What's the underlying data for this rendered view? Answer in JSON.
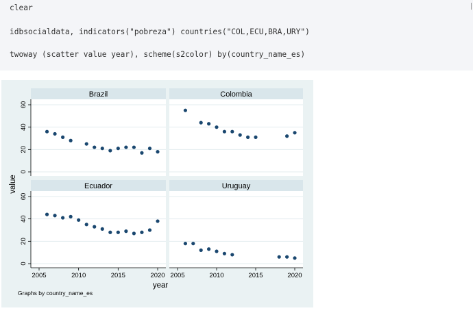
{
  "code": {
    "lines": [
      "clear",
      "idbsocialdata, indicators(\"pobreza\") countries(\"COL,ECU,BRA,URY\")",
      "twoway (scatter value year), scheme(s2color) by(country_name_es)"
    ]
  },
  "figure": {
    "note": "Graphs by country_name_es",
    "colors": {
      "marker": "#1a476f",
      "panel_header": "#d9e6eb",
      "background": "#eaf2f3"
    }
  },
  "chart_data": {
    "type": "scatter",
    "xlabel": "year",
    "ylabel": "value",
    "xlim": [
      2005,
      2020
    ],
    "ylim": [
      0,
      60
    ],
    "xticks": [
      "2005",
      "2010",
      "2015",
      "2020"
    ],
    "yticks": [
      "0",
      "20",
      "40",
      "60"
    ],
    "grid": true,
    "panels": [
      {
        "name": "Brazil",
        "x": [
          2006,
          2007,
          2008,
          2009,
          2011,
          2012,
          2013,
          2014,
          2015,
          2016,
          2017,
          2018,
          2019,
          2020
        ],
        "y": [
          36,
          34,
          31,
          28,
          25,
          22,
          21,
          19,
          21,
          22,
          22,
          17,
          21,
          18
        ]
      },
      {
        "name": "Colombia",
        "x": [
          2006,
          2008,
          2009,
          2010,
          2011,
          2012,
          2013,
          2014,
          2015,
          2019,
          2020
        ],
        "y": [
          55,
          44,
          43,
          40,
          36,
          36,
          33,
          31,
          31,
          32,
          35
        ]
      },
      {
        "name": "Ecuador",
        "x": [
          2006,
          2007,
          2008,
          2009,
          2010,
          2011,
          2012,
          2013,
          2014,
          2015,
          2016,
          2017,
          2018,
          2019,
          2020
        ],
        "y": [
          44,
          43,
          41,
          42,
          39,
          35,
          33,
          31,
          28,
          28,
          29,
          27,
          28,
          30,
          38
        ]
      },
      {
        "name": "Uruguay",
        "x": [
          2006,
          2007,
          2008,
          2009,
          2010,
          2011,
          2012,
          2018,
          2019,
          2020
        ],
        "y": [
          18,
          18,
          12,
          13,
          11,
          9,
          8,
          6,
          6,
          5
        ]
      }
    ]
  }
}
